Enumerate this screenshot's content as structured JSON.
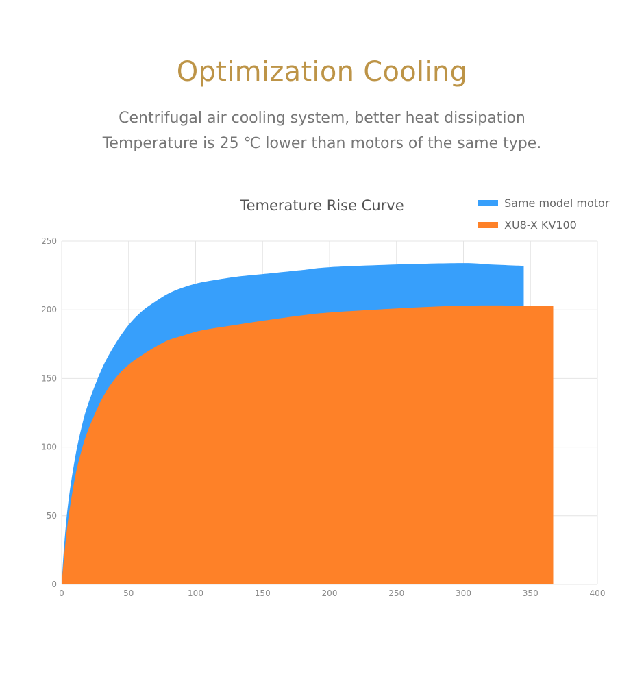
{
  "header": {
    "title": "Optimization Cooling",
    "subtitle_line1": "Centrifugal air cooling system, better heat dissipation",
    "subtitle_line2": "Temperature is 25 ℃ lower than motors of the same type."
  },
  "colors": {
    "title": "#bd9447",
    "same_model": "#379ffb",
    "xu8": "#fe8128",
    "grid": "#e4e4e4"
  },
  "chart_data": {
    "type": "area",
    "title": "Temerature Rise Curve",
    "xlabel": "",
    "ylabel": "",
    "xlim": [
      0,
      400
    ],
    "ylim": [
      0,
      250
    ],
    "xticks": [
      0,
      50,
      100,
      150,
      200,
      250,
      300,
      350,
      400
    ],
    "yticks": [
      0,
      50,
      100,
      150,
      200,
      250
    ],
    "grid": true,
    "legend_position": "top-right",
    "series": [
      {
        "name": "Same model motor",
        "color": "#379ffb",
        "x": [
          0,
          2,
          5,
          10,
          15,
          20,
          30,
          40,
          50,
          60,
          70,
          80,
          90,
          100,
          110,
          130,
          150,
          180,
          200,
          250,
          300,
          320,
          345
        ],
        "y": [
          0,
          30,
          60,
          92,
          115,
          132,
          157,
          175,
          189,
          199,
          206,
          212,
          216,
          219,
          221,
          224,
          226,
          229,
          231,
          233,
          234,
          233,
          232
        ]
      },
      {
        "name": "XU8-X KV100",
        "color": "#fe8128",
        "x": [
          0,
          2,
          5,
          10,
          15,
          20,
          30,
          40,
          50,
          60,
          70,
          80,
          90,
          100,
          110,
          130,
          150,
          180,
          200,
          250,
          300,
          350,
          367
        ],
        "y": [
          0,
          22,
          48,
          78,
          98,
          113,
          135,
          150,
          160,
          167,
          173,
          178,
          181,
          184,
          186,
          189,
          192,
          196,
          198,
          201,
          203,
          203,
          203
        ]
      }
    ]
  }
}
